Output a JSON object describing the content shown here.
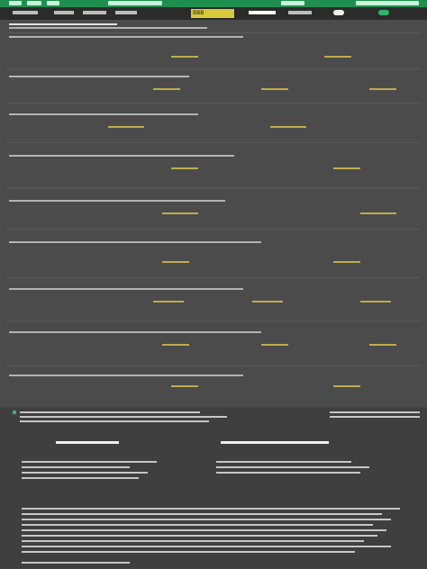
{
  "header": {
    "brand": "BBB",
    "tabs": [
      "",
      "",
      "",
      "",
      "",
      ""
    ],
    "top_links": [
      "",
      "",
      "",
      "",
      "",
      ""
    ]
  },
  "colors": {
    "accent_green": "#1f8f4f",
    "gold": "#cdb64b",
    "background": "#4b4b4b"
  },
  "content_blocks": [],
  "footer_panel": {
    "title": "",
    "lines": []
  }
}
